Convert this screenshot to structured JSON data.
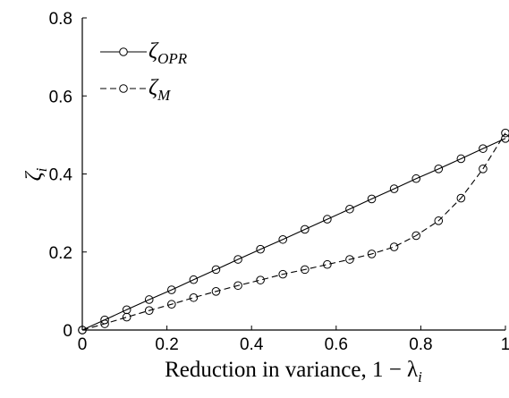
{
  "chart_data": {
    "type": "line",
    "xlabel": "Reduction in variance, 1 − λ",
    "xlabel_sub": "i",
    "ylabel": "ζ",
    "ylabel_sub": "i",
    "xlim": [
      0,
      1
    ],
    "ylim": [
      0,
      0.8
    ],
    "xticks": [
      0,
      0.2,
      0.4,
      0.6,
      0.8,
      1
    ],
    "xtick_labels": [
      "0",
      "0.2",
      "0.4",
      "0.6",
      "0.8",
      "1"
    ],
    "yticks": [
      0,
      0.2,
      0.4,
      0.6,
      0.8
    ],
    "ytick_labels": [
      "0",
      "0.2",
      "0.4",
      "0.6",
      "0.8"
    ],
    "grid": false,
    "legend_position": "top-left",
    "series": [
      {
        "name": "ζ",
        "name_sub": "OPR",
        "line_style": "solid",
        "marker": "open-circle",
        "x": [
          0,
          0.053,
          0.105,
          0.158,
          0.211,
          0.263,
          0.316,
          0.368,
          0.421,
          0.474,
          0.526,
          0.579,
          0.632,
          0.684,
          0.737,
          0.789,
          0.842,
          0.895,
          0.947,
          1.0
        ],
        "values": [
          0,
          0.026,
          0.052,
          0.078,
          0.103,
          0.129,
          0.155,
          0.181,
          0.207,
          0.232,
          0.258,
          0.284,
          0.31,
          0.336,
          0.362,
          0.388,
          0.413,
          0.439,
          0.465,
          0.491
        ]
      },
      {
        "name": "ζ",
        "name_sub": "M",
        "line_style": "dashed",
        "marker": "open-circle",
        "x": [
          0,
          0.053,
          0.105,
          0.158,
          0.211,
          0.263,
          0.316,
          0.368,
          0.421,
          0.474,
          0.526,
          0.579,
          0.632,
          0.684,
          0.737,
          0.789,
          0.842,
          0.895,
          0.947,
          1.0
        ],
        "values": [
          0,
          0.016,
          0.033,
          0.05,
          0.066,
          0.083,
          0.099,
          0.114,
          0.128,
          0.143,
          0.155,
          0.168,
          0.181,
          0.195,
          0.213,
          0.242,
          0.28,
          0.338,
          0.413,
          0.505
        ]
      }
    ]
  }
}
